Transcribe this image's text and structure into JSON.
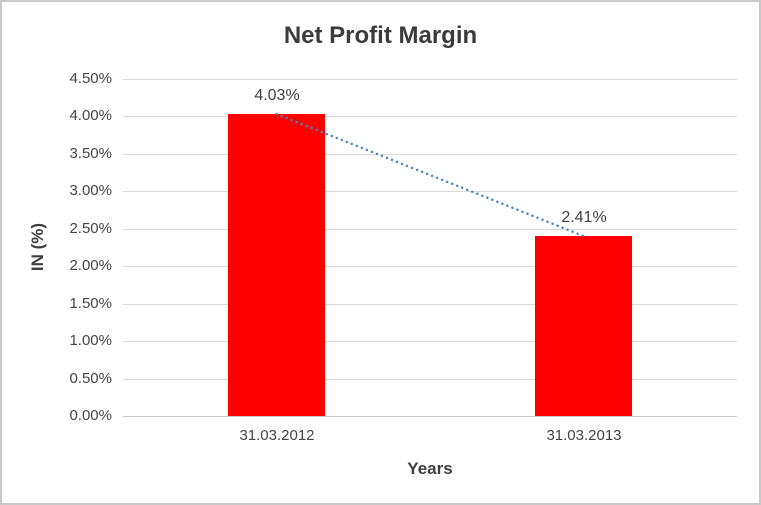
{
  "window": {
    "background_color": "#ffffff",
    "border_color": "#c9c9c9"
  },
  "chart_data": {
    "type": "bar",
    "title": "Net Profit Margin",
    "categories": [
      "31.03.2012",
      "31.03.2013"
    ],
    "values": [
      4.03,
      2.41
    ],
    "data_labels": [
      "4.03%",
      "2.41%"
    ],
    "xlabel": "Years",
    "ylabel": "IN (%)",
    "ylim": [
      0,
      4.5
    ],
    "ytick_step": 0.5,
    "ytick_labels": [
      "4.50%",
      "4.00%",
      "3.50%",
      "3.00%",
      "2.50%",
      "2.00%",
      "1.50%",
      "1.00%",
      "0.50%",
      "0.00%"
    ],
    "grid": true,
    "legend_position": "none",
    "bar_color": "#ff0000",
    "gridline_color": "#d9d9d9",
    "axis_line_color": "#c6c6c6",
    "trendline": {
      "style": "dotted",
      "color": "#4a82c8",
      "connects": "bar tops"
    }
  }
}
